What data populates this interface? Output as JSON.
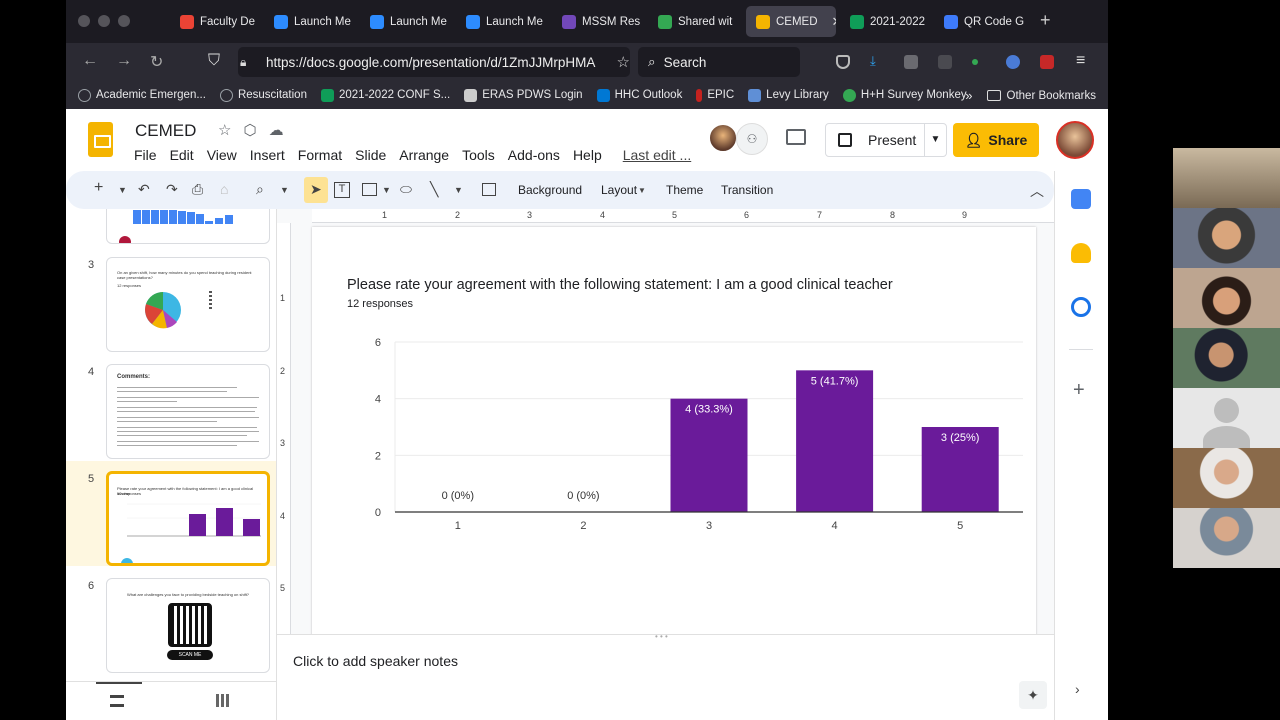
{
  "browser": {
    "tabs": [
      {
        "label": "Faculty De",
        "color": "#ea4335"
      },
      {
        "label": "Launch Me",
        "color": "#2d8cff"
      },
      {
        "label": "Launch Me",
        "color": "#2d8cff"
      },
      {
        "label": "Launch Me",
        "color": "#2d8cff"
      },
      {
        "label": "MSSM Res",
        "color": "#7248b9"
      },
      {
        "label": "Shared wit",
        "color": "#34a853"
      },
      {
        "label": "CEMED",
        "color": "#f4b400",
        "active": true
      },
      {
        "label": "2021-2022",
        "color": "#0f9d58"
      },
      {
        "label": "QR Code G",
        "color": "#3e7bfa"
      }
    ],
    "url": "https://docs.google.com/presentation/d/1ZmJJMrpHMA",
    "search_placeholder": "Search",
    "bookmarks": [
      {
        "label": "Academic Emergen...",
        "color": "#9aa0a6"
      },
      {
        "label": "Resuscitation",
        "color": "#9aa0a6"
      },
      {
        "label": "2021-2022 CONF S...",
        "color": "#0f9d58"
      },
      {
        "label": "ERAS PDWS Login",
        "color": "#cccccc"
      },
      {
        "label": "HHC Outlook",
        "color": "#0078d4"
      },
      {
        "label": "EPIC",
        "color": "#c5221f"
      },
      {
        "label": "Levy Library",
        "color": "#5f8fd6"
      },
      {
        "label": "H+H Survey Monkey",
        "color": "#34a853"
      }
    ],
    "other_bookmarks": "Other Bookmarks"
  },
  "app": {
    "title": "CEMED",
    "menu": [
      "File",
      "Edit",
      "View",
      "Insert",
      "Format",
      "Slide",
      "Arrange",
      "Tools",
      "Add-ons",
      "Help"
    ],
    "last_edit": "Last edit ...",
    "present_label": "Present",
    "share_label": "Share",
    "toolbar": {
      "background": "Background",
      "layout": "Layout",
      "theme": "Theme",
      "transition": "Transition"
    },
    "notes_placeholder": "Click to add speaker notes"
  },
  "filmstrip": {
    "slides": [
      {
        "number": "3",
        "title": "On an given shift, how many minutes do you spend teaching during resident case presentations?",
        "responses": "12 responses"
      },
      {
        "number": "4",
        "title": "Comments:"
      },
      {
        "number": "5",
        "title": "Please rate your agreement with the following statement: I am a good clinical teacher",
        "responses": "12 responses"
      },
      {
        "number": "6",
        "title": "What are challenges you face to providing bedside teaching on shift?",
        "qr_label": "SCAN ME"
      }
    ]
  },
  "slide": {
    "title": "Please rate your agreement with the following statement: I am a good clinical teacher",
    "subtitle": "12 responses"
  },
  "chart_data": {
    "type": "bar",
    "title": "Please rate your agreement with the following statement: I am a good clinical teacher",
    "categories": [
      "1",
      "2",
      "3",
      "4",
      "5"
    ],
    "values": [
      0,
      0,
      4,
      5,
      3
    ],
    "labels": [
      "0 (0%)",
      "0 (0%)",
      "4 (33.3%)",
      "5 (41.7%)",
      "3 (25%)"
    ],
    "ylim": [
      0,
      6
    ],
    "yticks": [
      0,
      2,
      4,
      6
    ],
    "bar_color": "#6a1b9a",
    "grid": true
  },
  "rulers": {
    "horizontal": [
      "1",
      "2",
      "3",
      "4",
      "5",
      "6",
      "7",
      "8",
      "9"
    ],
    "vertical": [
      "1",
      "2",
      "3",
      "4",
      "5"
    ]
  }
}
